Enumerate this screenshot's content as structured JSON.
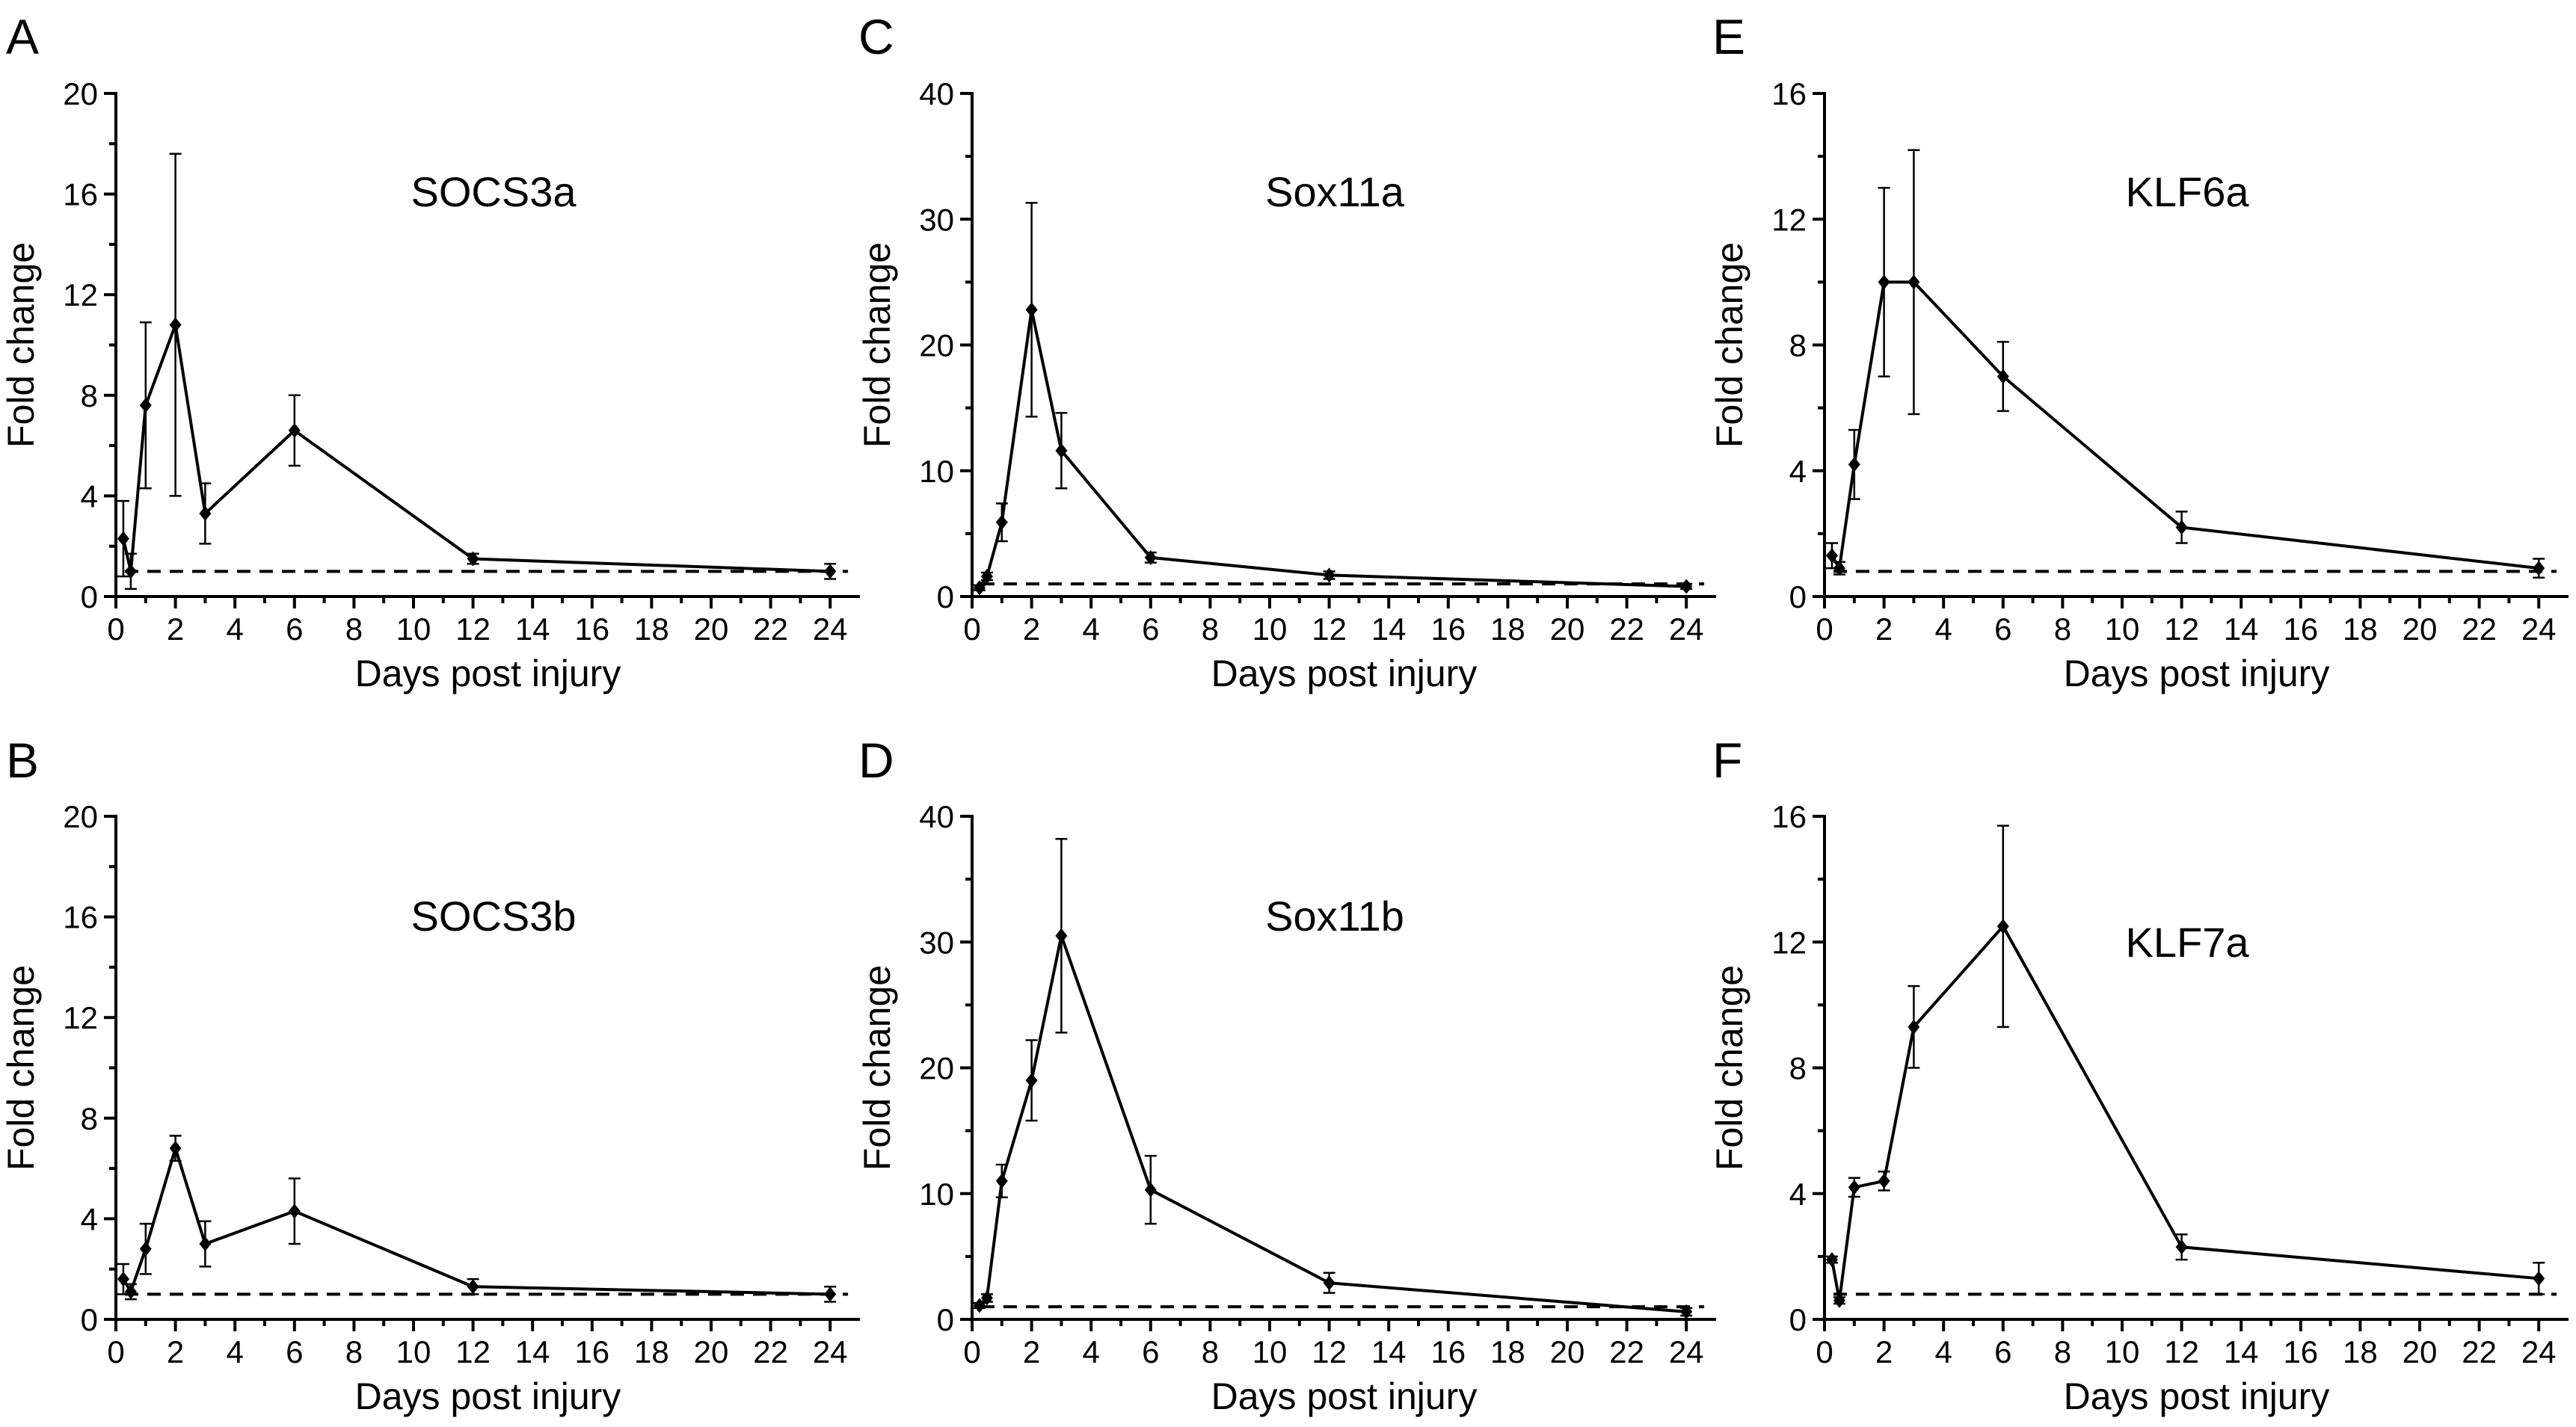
{
  "chart_data": [
    {
      "panel": "A",
      "type": "line",
      "title": "SOCS3a",
      "xlabel": "Days post injury",
      "ylabel": "Fold change",
      "xlim": [
        0,
        25
      ],
      "ylim": [
        0,
        20
      ],
      "xticks": [
        0,
        2,
        4,
        6,
        8,
        10,
        12,
        14,
        16,
        18,
        20,
        22,
        24
      ],
      "yticks": [
        0,
        4,
        8,
        12,
        16,
        20
      ],
      "baseline": 1,
      "x": [
        0.25,
        0.5,
        1,
        2,
        3,
        6,
        12,
        24
      ],
      "y": [
        2.3,
        1.0,
        7.6,
        10.8,
        3.3,
        6.6,
        1.5,
        1.0
      ],
      "err": [
        1.5,
        0.7,
        3.3,
        6.8,
        1.2,
        1.4,
        0.2,
        0.3
      ]
    },
    {
      "panel": "B",
      "type": "line",
      "title": "SOCS3b",
      "xlabel": "Days post injury",
      "ylabel": "Fold change",
      "xlim": [
        0,
        25
      ],
      "ylim": [
        0,
        20
      ],
      "xticks": [
        0,
        2,
        4,
        6,
        8,
        10,
        12,
        14,
        16,
        18,
        20,
        22,
        24
      ],
      "yticks": [
        0,
        4,
        8,
        12,
        16,
        20
      ],
      "baseline": 1,
      "x": [
        0.25,
        0.5,
        1,
        2,
        3,
        6,
        12,
        24
      ],
      "y": [
        1.6,
        1.1,
        2.8,
        6.8,
        3.0,
        4.3,
        1.3,
        1.0
      ],
      "err": [
        0.6,
        0.3,
        1.0,
        0.5,
        0.9,
        1.3,
        0.3,
        0.3
      ]
    },
    {
      "panel": "C",
      "type": "line",
      "title": "Sox11a",
      "xlabel": "Days post injury",
      "ylabel": "Fold change",
      "xlim": [
        0,
        25
      ],
      "ylim": [
        0,
        40
      ],
      "xticks": [
        0,
        2,
        4,
        6,
        8,
        10,
        12,
        14,
        16,
        18,
        20,
        22,
        24
      ],
      "yticks": [
        0,
        10,
        20,
        30,
        40
      ],
      "baseline": 1,
      "x": [
        0.25,
        0.5,
        1,
        2,
        3,
        6,
        12,
        24
      ],
      "y": [
        0.7,
        1.6,
        5.9,
        22.8,
        11.6,
        3.1,
        1.7,
        0.8
      ],
      "err": [
        0.2,
        0.3,
        1.5,
        8.5,
        3.0,
        0.4,
        0.3,
        0.2
      ]
    },
    {
      "panel": "D",
      "type": "line",
      "title": "Sox11b",
      "xlabel": "Days post injury",
      "ylabel": "Fold change",
      "xlim": [
        0,
        25
      ],
      "ylim": [
        0,
        40
      ],
      "xticks": [
        0,
        2,
        4,
        6,
        8,
        10,
        12,
        14,
        16,
        18,
        20,
        22,
        24
      ],
      "yticks": [
        0,
        10,
        20,
        30,
        40
      ],
      "baseline": 1,
      "x": [
        0.25,
        0.5,
        1,
        2,
        3,
        6,
        12,
        24
      ],
      "y": [
        1.1,
        1.7,
        11.0,
        19.0,
        30.5,
        10.3,
        2.9,
        0.6
      ],
      "err": [
        0.2,
        0.3,
        1.3,
        3.2,
        7.7,
        2.7,
        0.8,
        0.3
      ]
    },
    {
      "panel": "E",
      "type": "line",
      "title": "KLF6a",
      "xlabel": "Days post injury",
      "ylabel": "Fold change",
      "xlim": [
        0,
        25
      ],
      "ylim": [
        0,
        16
      ],
      "xticks": [
        0,
        2,
        4,
        6,
        8,
        10,
        12,
        14,
        16,
        18,
        20,
        22,
        24
      ],
      "yticks": [
        0,
        4,
        8,
        12,
        16
      ],
      "baseline": 0.8,
      "x": [
        0.25,
        0.5,
        1,
        2,
        3,
        6,
        12,
        24
      ],
      "y": [
        1.3,
        0.9,
        4.2,
        10.0,
        10.0,
        7.0,
        2.2,
        0.9
      ],
      "err": [
        0.4,
        0.2,
        1.1,
        3.0,
        4.2,
        1.1,
        0.5,
        0.3
      ]
    },
    {
      "panel": "F",
      "type": "line",
      "title": "KLF7a",
      "xlabel": "Days post injury",
      "ylabel": "Fold change",
      "xlim": [
        0,
        25
      ],
      "ylim": [
        0,
        16
      ],
      "xticks": [
        0,
        2,
        4,
        6,
        8,
        10,
        12,
        14,
        16,
        18,
        20,
        22,
        24
      ],
      "yticks": [
        0,
        4,
        8,
        12,
        16
      ],
      "baseline": 0.8,
      "x": [
        0.25,
        0.5,
        1,
        2,
        3,
        6,
        12,
        24
      ],
      "y": [
        1.9,
        0.6,
        4.2,
        4.4,
        9.3,
        12.5,
        2.3,
        1.3
      ],
      "err": [
        0.1,
        0.1,
        0.3,
        0.3,
        1.3,
        3.2,
        0.4,
        0.5
      ]
    }
  ]
}
